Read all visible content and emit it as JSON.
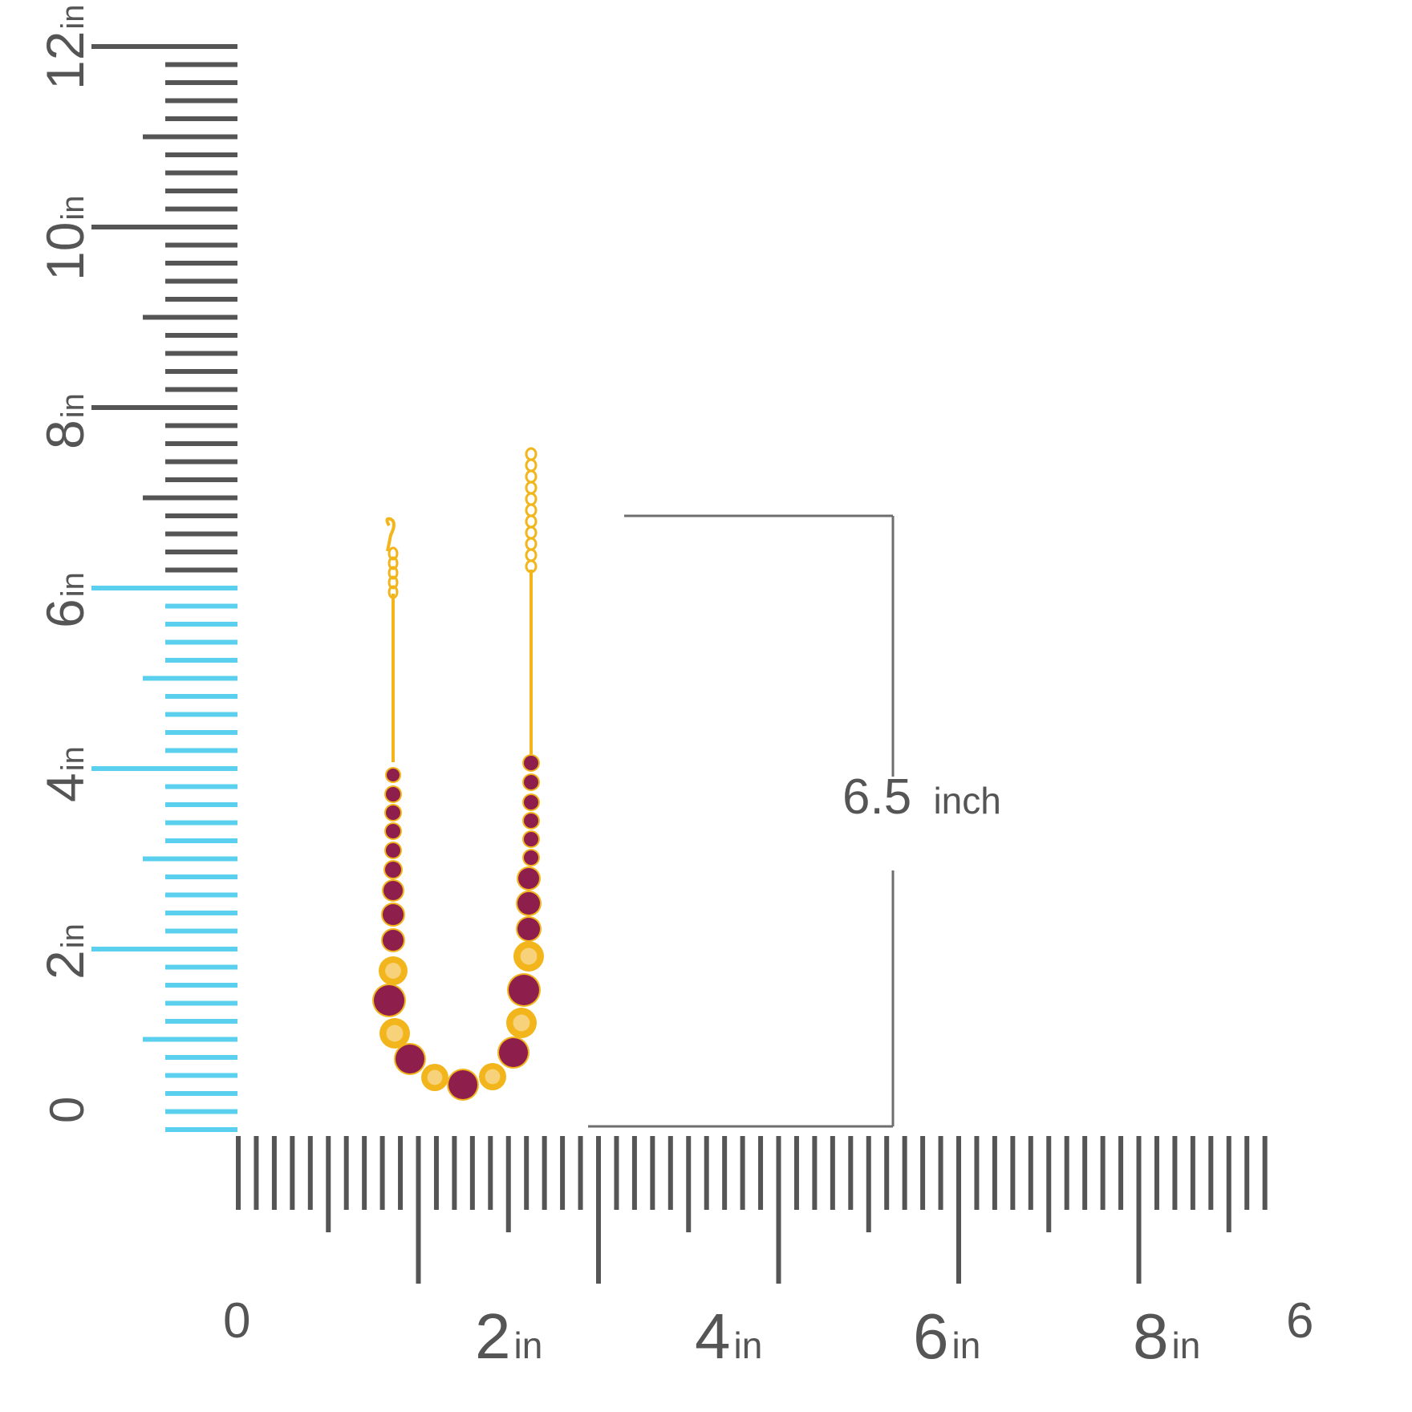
{
  "vertical_ruler": {
    "zero_label": "0",
    "labels": [
      {
        "num": "2",
        "unit": "in"
      },
      {
        "num": "4",
        "unit": "in"
      },
      {
        "num": "6",
        "unit": "in"
      },
      {
        "num": "8",
        "unit": "in"
      },
      {
        "num": "10",
        "unit": "in"
      },
      {
        "num": "12",
        "unit": "in"
      }
    ],
    "highlight_color": "#5bd0ee",
    "tick_color": "#555555"
  },
  "horizontal_ruler": {
    "zero_label": "0",
    "labels": [
      {
        "num": "2",
        "unit": "in"
      },
      {
        "num": "4",
        "unit": "in"
      },
      {
        "num": "6",
        "unit": "in"
      },
      {
        "num": "8",
        "unit": "in"
      }
    ],
    "end_label": "6"
  },
  "dimension": {
    "value": "6.5",
    "unit": "inch"
  },
  "product": {
    "gold_color": "#f2b61c",
    "stone_color": "#8e1f4c"
  }
}
